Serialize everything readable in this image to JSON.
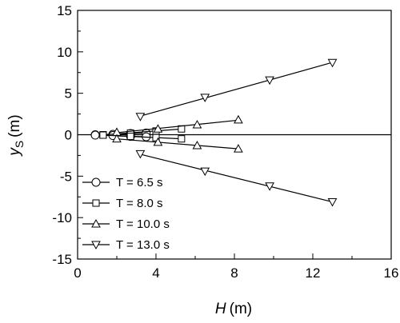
{
  "chart_data": {
    "type": "line",
    "xlabel": "H",
    "xlabel_unit": "(m)",
    "ylabel": "y",
    "ylabel_sub": "S",
    "ylabel_unit": "(m)",
    "xlim": [
      0,
      16
    ],
    "ylim": [
      -15,
      15
    ],
    "x_ticks": [
      0,
      4,
      8,
      12,
      16
    ],
    "y_ticks": [
      -15,
      -10,
      -5,
      0,
      5,
      10,
      15
    ],
    "grid": false,
    "legend_position": "bottom-left",
    "zero_line": true,
    "series": [
      {
        "name": "T = 6.5 s",
        "marker": "circle",
        "upper": {
          "x": [
            0.9,
            1.8,
            2.7,
            3.5
          ],
          "y": [
            0.0,
            0.05,
            0.15,
            0.2
          ]
        },
        "lower": {
          "x": [
            0.9,
            1.8,
            2.7,
            3.5
          ],
          "y": [
            -0.05,
            -0.1,
            -0.2,
            -0.25
          ]
        }
      },
      {
        "name": "T = 8.0 s",
        "marker": "square",
        "upper": {
          "x": [
            1.3,
            2.7,
            4.0,
            5.3
          ],
          "y": [
            0.0,
            0.2,
            0.45,
            0.7
          ]
        },
        "lower": {
          "x": [
            1.3,
            2.7,
            4.0,
            5.3
          ],
          "y": [
            -0.05,
            -0.2,
            -0.35,
            -0.5
          ]
        }
      },
      {
        "name": "T = 10.0 s",
        "marker": "triangle-up",
        "upper": {
          "x": [
            2.0,
            4.1,
            6.1,
            8.2
          ],
          "y": [
            0.3,
            0.7,
            1.2,
            1.8
          ]
        },
        "lower": {
          "x": [
            2.0,
            4.1,
            6.1,
            8.2
          ],
          "y": [
            -0.5,
            -0.9,
            -1.3,
            -1.7
          ]
        }
      },
      {
        "name": "T = 13.0 s",
        "marker": "triangle-down",
        "upper": {
          "x": [
            3.2,
            6.5,
            9.8,
            13.0
          ],
          "y": [
            2.2,
            4.5,
            6.6,
            8.7
          ]
        },
        "lower": {
          "x": [
            3.2,
            6.5,
            9.8,
            13.0
          ],
          "y": [
            -2.3,
            -4.4,
            -6.2,
            -8.1
          ]
        }
      }
    ]
  }
}
